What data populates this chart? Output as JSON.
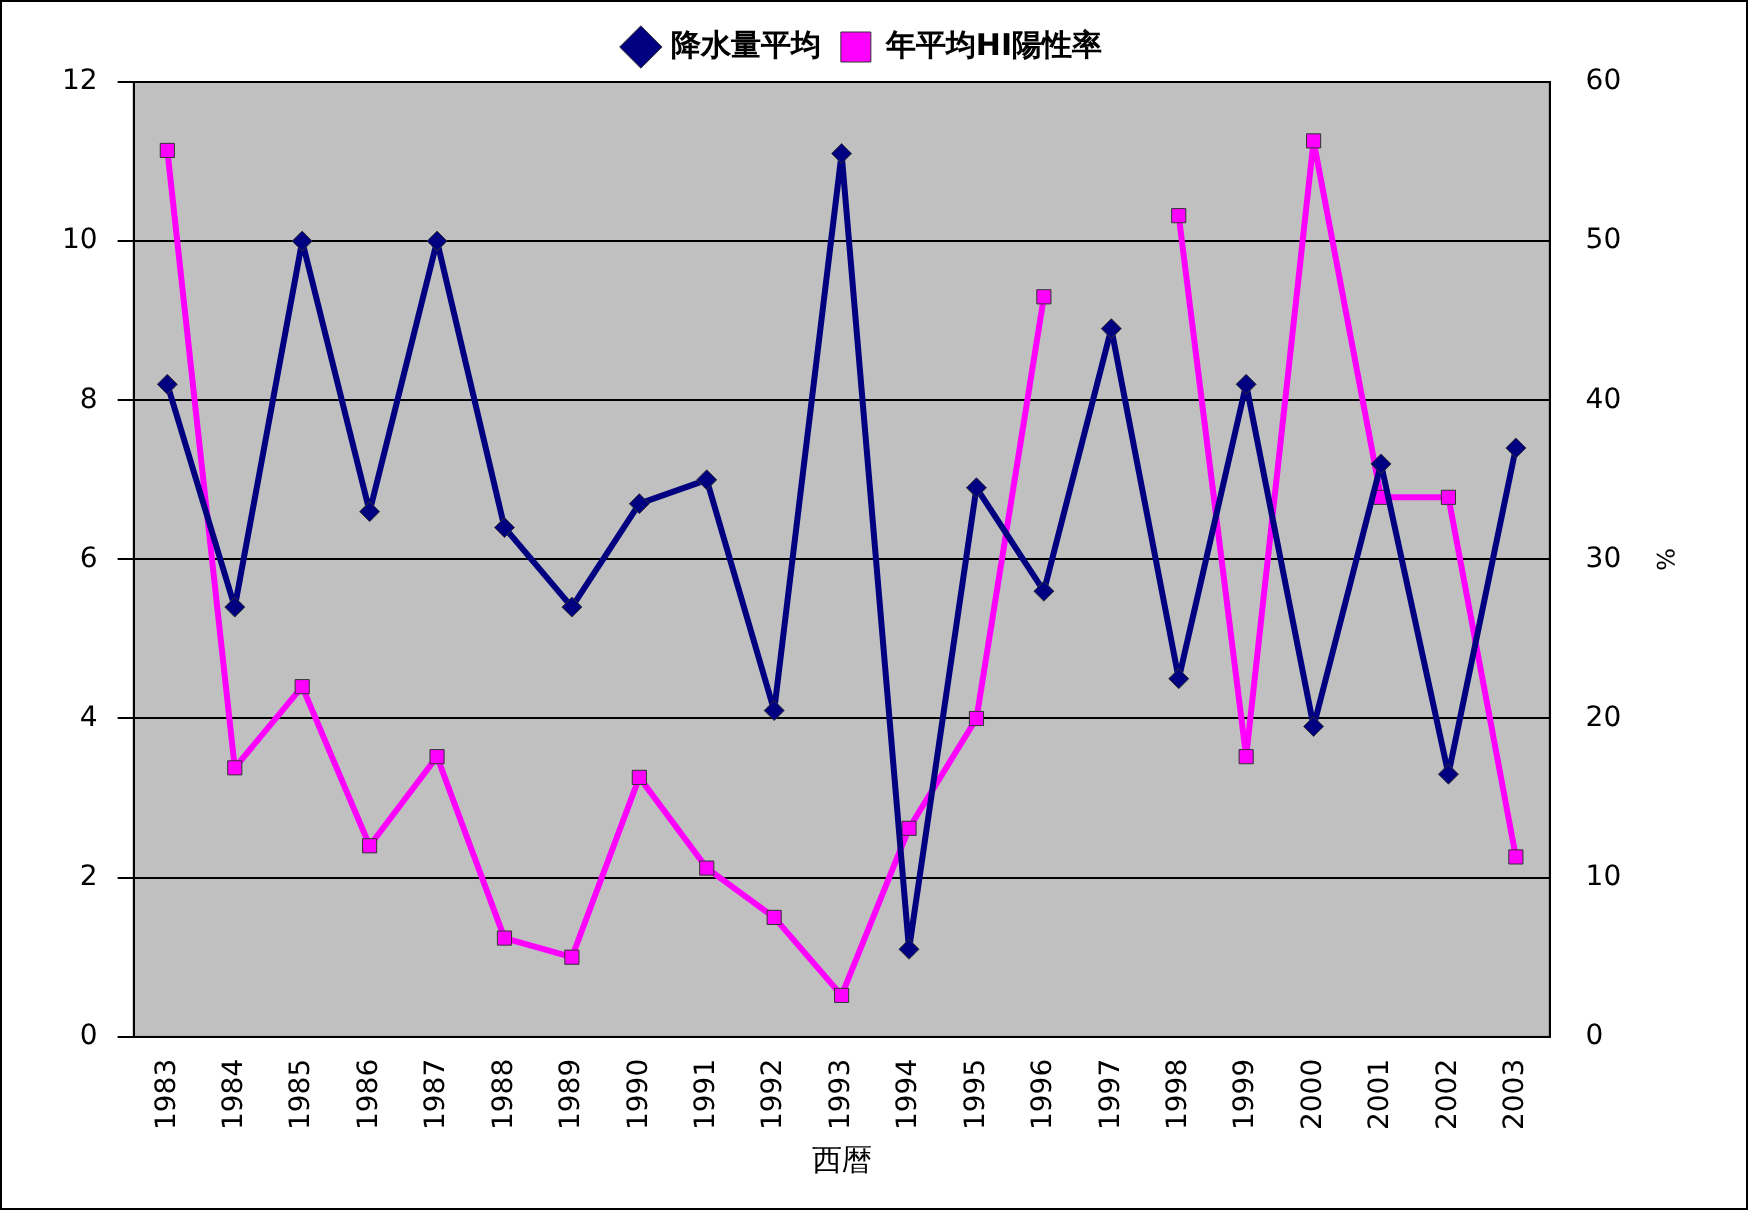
{
  "chart_data": {
    "type": "line",
    "xlabel": "西暦",
    "y2label": "%",
    "categories": [
      "1983",
      "1984",
      "1985",
      "1986",
      "1987",
      "1988",
      "1989",
      "1990",
      "1991",
      "1992",
      "1993",
      "1994",
      "1995",
      "1996",
      "1997",
      "1998",
      "1999",
      "2000",
      "2001",
      "2002",
      "2003"
    ],
    "series": [
      {
        "name": "降水量平均",
        "color": "#000080",
        "marker": "diamond",
        "values": [
          8.2,
          5.4,
          10.0,
          6.6,
          10.0,
          6.4,
          5.4,
          6.7,
          7.0,
          4.1,
          11.1,
          1.1,
          6.9,
          5.6,
          8.9,
          4.5,
          8.2,
          3.9,
          7.2,
          3.3,
          7.4
        ]
      },
      {
        "name": "年平均HI陽性率",
        "color": "#ff00ff",
        "marker": "square",
        "axis": "y2",
        "values": [
          55.7,
          16.9,
          22.0,
          12.0,
          17.6,
          6.2,
          5.0,
          16.3,
          10.6,
          7.5,
          2.6,
          13.1,
          20.0,
          46.5,
          null,
          51.6,
          17.6,
          56.3,
          33.9,
          33.9,
          11.3
        ]
      }
    ],
    "ylim": [
      0,
      12
    ],
    "yticks": [
      0,
      2,
      4,
      6,
      8,
      10,
      12
    ],
    "y2lim": [
      0,
      60
    ],
    "y2ticks": [
      0,
      10,
      20,
      30,
      40,
      50,
      60
    ],
    "grid": "y",
    "legend": "top",
    "line_style": "solid"
  }
}
